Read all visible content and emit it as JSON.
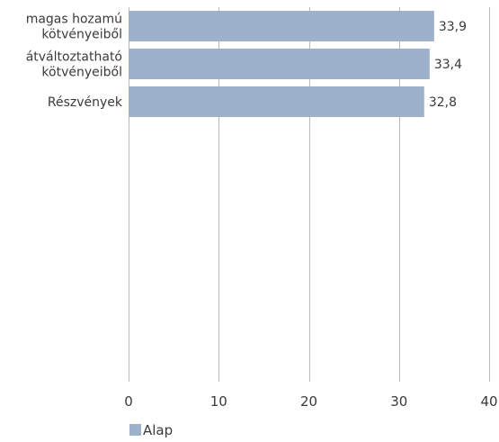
{
  "chart_data": {
    "type": "bar",
    "orientation": "horizontal",
    "categories": [
      [
        "magas hozamú",
        "kötvényeiből"
      ],
      [
        "átváltoztatható",
        "kötvényeiből"
      ],
      [
        "Részvények"
      ]
    ],
    "series": [
      {
        "name": "Alap",
        "values": [
          33.9,
          33.4,
          32.8
        ],
        "value_labels": [
          "33,9",
          "33,4",
          "32,8"
        ],
        "color": "#9eb1cb"
      }
    ],
    "xlim": [
      0,
      40
    ],
    "x_ticks": [
      0,
      10,
      20,
      30,
      40
    ],
    "x_tick_labels": [
      "0",
      "10",
      "20",
      "30",
      "40"
    ],
    "grid": true,
    "legend": "bottom-left"
  }
}
